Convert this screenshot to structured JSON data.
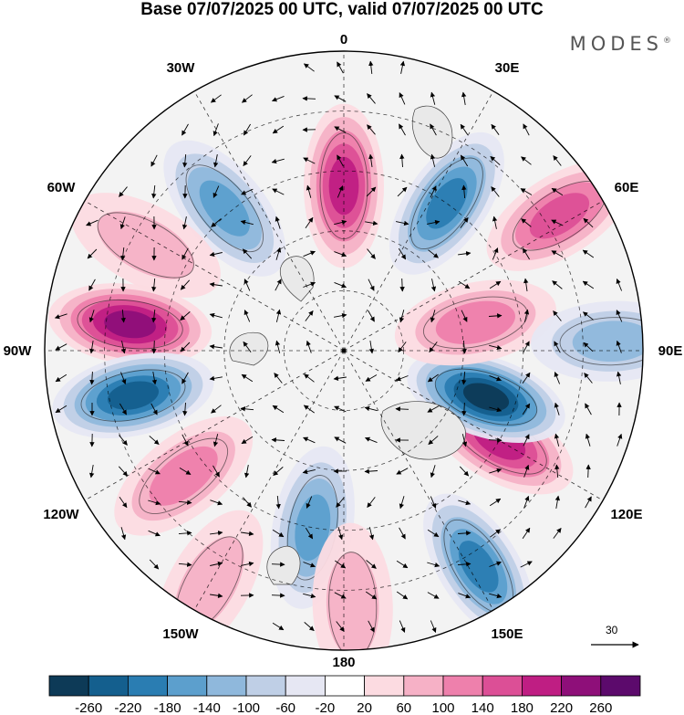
{
  "title": "Base 07/07/2025 00 UTC, valid 07/07/2025 00 UTC",
  "brand": "MODES",
  "brand_mark": "®",
  "longitude_labels": [
    {
      "text": "0",
      "lon": 0
    },
    {
      "text": "30E",
      "lon": 30
    },
    {
      "text": "60E",
      "lon": 60
    },
    {
      "text": "90E",
      "lon": 90
    },
    {
      "text": "120E",
      "lon": 120
    },
    {
      "text": "150E",
      "lon": 150
    },
    {
      "text": "180",
      "lon": 180
    },
    {
      "text": "150W",
      "lon": -150
    },
    {
      "text": "120W",
      "lon": -120
    },
    {
      "text": "90W",
      "lon": -90
    },
    {
      "text": "60W",
      "lon": -60
    },
    {
      "text": "30W",
      "lon": -30
    }
  ],
  "vector_reference": "30",
  "colorbar": {
    "ticks": [
      "-260",
      "-220",
      "-180",
      "-140",
      "-100",
      "-60",
      "-20",
      "20",
      "60",
      "100",
      "140",
      "180",
      "220",
      "260"
    ],
    "colors": [
      "#0d3a57",
      "#145f8e",
      "#2a7db2",
      "#5c9fcd",
      "#8fb8dc",
      "#bfcfe6",
      "#e6e7f3",
      "#ffffff",
      "#fcdbe1",
      "#f6b1c6",
      "#ee80ac",
      "#dc4f96",
      "#bf1e83",
      "#8e0f79",
      "#5c0a6c"
    ]
  },
  "anomaly_features": [
    {
      "lon": 0,
      "colat": 0.55,
      "value": 200
    },
    {
      "lon": 35,
      "colat": 0.6,
      "value": -180
    },
    {
      "lon": 58,
      "colat": 0.85,
      "value": 160
    },
    {
      "lon": -40,
      "colat": 0.62,
      "value": -150
    },
    {
      "lon": -62,
      "colat": 0.75,
      "value": 80
    },
    {
      "lon": -83,
      "colat": 0.72,
      "value": 230
    },
    {
      "lon": -102,
      "colat": 0.72,
      "value": -220
    },
    {
      "lon": -128,
      "colat": 0.68,
      "value": 120
    },
    {
      "lon": -170,
      "colat": 0.6,
      "value": -150
    },
    {
      "lon": 148,
      "colat": 0.85,
      "value": -200
    },
    {
      "lon": 120,
      "colat": 0.6,
      "value": 200
    },
    {
      "lon": 108,
      "colat": 0.5,
      "value": -260
    },
    {
      "lon": 78,
      "colat": 0.45,
      "value": 110
    },
    {
      "lon": 178,
      "colat": 0.85,
      "value": 80
    },
    {
      "lon": -150,
      "colat": 0.9,
      "value": 60
    },
    {
      "lon": 88,
      "colat": 0.9,
      "value": -120
    }
  ]
}
